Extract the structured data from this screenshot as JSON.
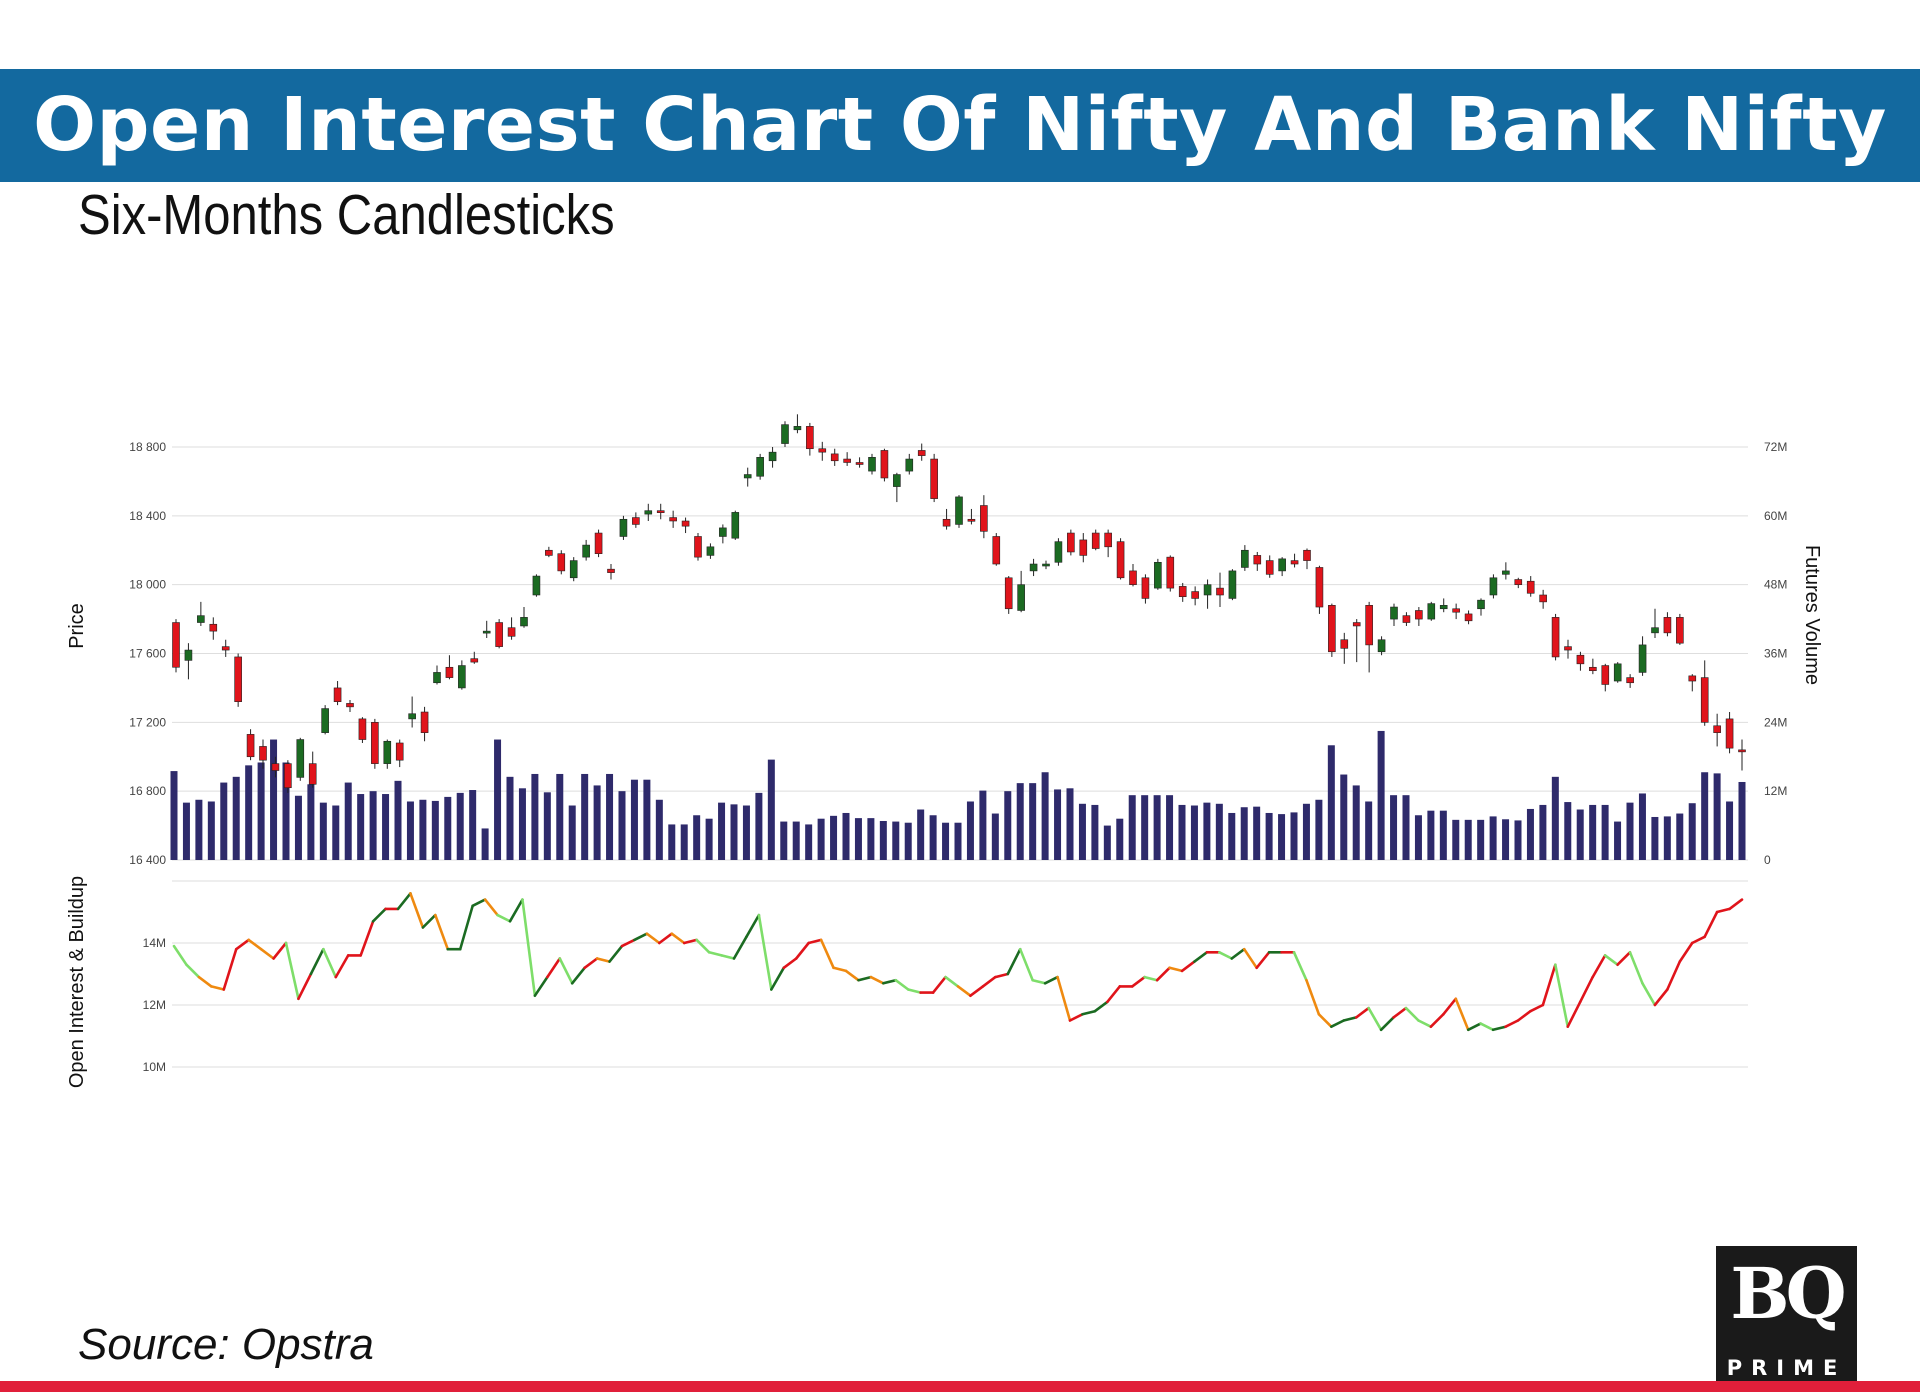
{
  "header": {
    "title": "Open Interest Chart Of Nifty And Bank Nifty",
    "subtitle": "Six-Months Candlesticks"
  },
  "footer": {
    "source": "Source: Opstra",
    "logo_main": "BQ",
    "logo_sub": "PRIME"
  },
  "colors": {
    "banner": "#13699f",
    "up": "#1b6b22",
    "down": "#e0141b",
    "volume": "#2e2a6b",
    "oi_long_buildup": "#1b6b22",
    "oi_short_covering": "#7ede6a",
    "oi_short_buildup": "#e0141b",
    "oi_long_unwinding": "#ef8a10",
    "accent_bar": "#e11f3a"
  },
  "chart_data": {
    "type": "candlestick",
    "price_axis": {
      "label": "Price",
      "ylim": [
        16400,
        18800
      ],
      "ticks": [
        16400,
        16800,
        17200,
        17600,
        18000,
        18400,
        18800
      ],
      "tick_labels": [
        "16 400",
        "16 800",
        "17 200",
        "17 600",
        "18 000",
        "18 400",
        "18 800"
      ]
    },
    "volume_axis": {
      "label": "Futures Volume",
      "ylim": [
        0,
        72
      ],
      "unit": "M",
      "ticks": [
        0,
        12,
        24,
        36,
        48,
        60,
        72
      ],
      "tick_labels": [
        "0",
        "12M",
        "24M",
        "36M",
        "48M",
        "60M",
        "72M"
      ]
    },
    "oi_axis": {
      "label": "Open Interest & Buildup",
      "ylim": [
        10,
        16
      ],
      "unit": "M",
      "ticks": [
        10,
        12,
        14
      ],
      "tick_labels": [
        "10M",
        "12M",
        "14M"
      ]
    },
    "grid": true,
    "candles": [
      [
        17780,
        17520,
        17800,
        17490
      ],
      [
        17560,
        17620,
        17660,
        17450
      ],
      [
        17780,
        17820,
        17900,
        17760
      ],
      [
        17770,
        17730,
        17810,
        17680
      ],
      [
        17640,
        17620,
        17680,
        17580
      ],
      [
        17580,
        17320,
        17600,
        17290
      ],
      [
        17130,
        17000,
        17160,
        16980
      ],
      [
        17060,
        16980,
        17100,
        16930
      ],
      [
        16960,
        16920,
        17000,
        16880
      ],
      [
        16960,
        16820,
        16980,
        16790
      ],
      [
        16880,
        17100,
        17110,
        16860
      ],
      [
        16960,
        16840,
        17030,
        16820
      ],
      [
        17140,
        17280,
        17300,
        17130
      ],
      [
        17400,
        17320,
        17440,
        17300
      ],
      [
        17310,
        17290,
        17330,
        17260
      ],
      [
        17220,
        17100,
        17230,
        17080
      ],
      [
        17200,
        16960,
        17220,
        16930
      ],
      [
        16960,
        17090,
        17100,
        16930
      ],
      [
        17080,
        16980,
        17100,
        16940
      ],
      [
        17220,
        17250,
        17350,
        17170
      ],
      [
        17260,
        17140,
        17290,
        17090
      ],
      [
        17430,
        17490,
        17530,
        17420
      ],
      [
        17520,
        17460,
        17590,
        17450
      ],
      [
        17400,
        17530,
        17560,
        17390
      ],
      [
        17570,
        17550,
        17610,
        17540
      ],
      [
        17720,
        17730,
        17790,
        17690
      ],
      [
        17780,
        17640,
        17800,
        17630
      ],
      [
        17750,
        17700,
        17810,
        17680
      ],
      [
        17760,
        17810,
        17870,
        17750
      ],
      [
        17940,
        18050,
        18060,
        17930
      ],
      [
        18200,
        18170,
        18220,
        18160
      ],
      [
        18180,
        18080,
        18200,
        18060
      ],
      [
        18040,
        18140,
        18160,
        18020
      ],
      [
        18160,
        18230,
        18260,
        18140
      ],
      [
        18300,
        18180,
        18320,
        18160
      ],
      [
        18090,
        18070,
        18120,
        18030
      ],
      [
        18280,
        18380,
        18400,
        18260
      ],
      [
        18390,
        18350,
        18420,
        18330
      ],
      [
        18410,
        18430,
        18470,
        18370
      ],
      [
        18430,
        18420,
        18470,
        18380
      ],
      [
        18390,
        18370,
        18430,
        18330
      ],
      [
        18370,
        18340,
        18390,
        18300
      ],
      [
        18280,
        18160,
        18300,
        18140
      ],
      [
        18170,
        18220,
        18240,
        18150
      ],
      [
        18280,
        18330,
        18350,
        18240
      ],
      [
        18270,
        18420,
        18430,
        18260
      ],
      [
        18620,
        18640,
        18680,
        18570
      ],
      [
        18630,
        18740,
        18760,
        18610
      ],
      [
        18720,
        18770,
        18800,
        18680
      ],
      [
        18820,
        18930,
        18950,
        18800
      ],
      [
        18900,
        18920,
        18990,
        18880
      ],
      [
        18920,
        18790,
        18940,
        18750
      ],
      [
        18790,
        18770,
        18830,
        18720
      ],
      [
        18760,
        18720,
        18790,
        18690
      ],
      [
        18730,
        18710,
        18770,
        18690
      ],
      [
        18710,
        18700,
        18740,
        18680
      ],
      [
        18660,
        18740,
        18760,
        18640
      ],
      [
        18780,
        18620,
        18790,
        18600
      ],
      [
        18570,
        18640,
        18650,
        18480
      ],
      [
        18660,
        18730,
        18760,
        18640
      ],
      [
        18780,
        18750,
        18820,
        18720
      ],
      [
        18730,
        18500,
        18760,
        18480
      ],
      [
        18380,
        18340,
        18440,
        18320
      ],
      [
        18350,
        18510,
        18520,
        18330
      ],
      [
        18380,
        18370,
        18440,
        18350
      ],
      [
        18460,
        18310,
        18520,
        18270
      ],
      [
        18280,
        18120,
        18300,
        18110
      ],
      [
        18040,
        17860,
        18050,
        17830
      ],
      [
        17850,
        18000,
        18080,
        17840
      ],
      [
        18080,
        18120,
        18150,
        18050
      ],
      [
        18120,
        18120,
        18140,
        18090
      ],
      [
        18130,
        18250,
        18270,
        18110
      ],
      [
        18300,
        18190,
        18320,
        18170
      ],
      [
        18260,
        18170,
        18300,
        18130
      ],
      [
        18300,
        18210,
        18320,
        18200
      ],
      [
        18300,
        18220,
        18320,
        18160
      ],
      [
        18250,
        18040,
        18270,
        18030
      ],
      [
        18080,
        18000,
        18120,
        17990
      ],
      [
        18040,
        17920,
        18060,
        17890
      ],
      [
        17980,
        18130,
        18150,
        17970
      ],
      [
        18160,
        17980,
        18170,
        17960
      ],
      [
        17990,
        17930,
        18010,
        17900
      ],
      [
        17960,
        17920,
        17990,
        17880
      ],
      [
        17940,
        18000,
        18030,
        17860
      ],
      [
        17980,
        17940,
        18070,
        17870
      ],
      [
        17920,
        18080,
        18090,
        17910
      ],
      [
        18100,
        18200,
        18230,
        18080
      ],
      [
        18170,
        18120,
        18190,
        18080
      ],
      [
        18140,
        18060,
        18170,
        18040
      ],
      [
        18080,
        18150,
        18160,
        18050
      ],
      [
        18140,
        18120,
        18180,
        18100
      ],
      [
        18200,
        18140,
        18210,
        18090
      ],
      [
        18100,
        17870,
        18110,
        17830
      ],
      [
        17880,
        17610,
        17890,
        17580
      ],
      [
        17680,
        17630,
        17720,
        17540
      ],
      [
        17780,
        17760,
        17800,
        17550
      ],
      [
        17880,
        17650,
        17900,
        17490
      ],
      [
        17610,
        17680,
        17700,
        17590
      ],
      [
        17800,
        17870,
        17890,
        17760
      ],
      [
        17820,
        17780,
        17840,
        17760
      ],
      [
        17850,
        17800,
        17870,
        17760
      ],
      [
        17800,
        17890,
        17900,
        17790
      ],
      [
        17860,
        17880,
        17920,
        17840
      ],
      [
        17860,
        17840,
        17890,
        17800
      ],
      [
        17830,
        17790,
        17850,
        17770
      ],
      [
        17860,
        17910,
        17920,
        17820
      ],
      [
        17940,
        18040,
        18060,
        17920
      ],
      [
        18060,
        18080,
        18130,
        18030
      ],
      [
        18030,
        18000,
        18040,
        17980
      ],
      [
        18020,
        17950,
        18050,
        17930
      ],
      [
        17940,
        17900,
        17970,
        17860
      ],
      [
        17810,
        17580,
        17830,
        17560
      ],
      [
        17640,
        17620,
        17680,
        17570
      ],
      [
        17590,
        17540,
        17610,
        17500
      ],
      [
        17520,
        17500,
        17570,
        17480
      ],
      [
        17530,
        17420,
        17540,
        17380
      ],
      [
        17440,
        17540,
        17550,
        17430
      ],
      [
        17460,
        17430,
        17480,
        17400
      ],
      [
        17490,
        17650,
        17700,
        17470
      ],
      [
        17720,
        17750,
        17860,
        17690
      ],
      [
        17810,
        17720,
        17840,
        17700
      ],
      [
        17810,
        17660,
        17830,
        17650
      ],
      [
        17470,
        17440,
        17480,
        17380
      ],
      [
        17460,
        17200,
        17560,
        17180
      ],
      [
        17180,
        17140,
        17250,
        17060
      ],
      [
        17220,
        17050,
        17260,
        17020
      ],
      [
        17040,
        17030,
        17100,
        16920
      ]
    ],
    "volume_values": [
      15.5,
      10,
      10.5,
      10.2,
      13.5,
      14.5,
      16.5,
      17,
      21,
      17,
      11.2,
      13.2,
      10,
      9.5,
      13.5,
      11.5,
      12,
      11.5,
      13.8,
      10.2,
      10.5,
      10.3,
      11,
      11.7,
      12.2,
      5.5,
      21,
      14.5,
      12.5,
      15,
      11.8,
      15,
      9.5,
      15,
      13,
      15,
      12,
      14,
      14,
      10.5,
      6.2,
      6.2,
      7.8,
      7.2,
      10,
      9.7,
      9.5,
      11.7,
      17.5,
      6.7,
      6.7,
      6.2,
      7.2,
      7.7,
      8.2,
      7.3,
      7.3,
      6.8,
      6.7,
      6.5,
      8.8,
      7.8,
      6.5,
      6.5,
      10.2,
      12.1,
      8.1,
      12,
      13.4,
      13.4,
      15.3,
      12.3,
      12.5,
      9.8,
      9.6,
      6,
      7.2,
      11.3,
      11.3,
      11.3,
      11.3,
      9.6,
      9.5,
      10,
      9.8,
      8.2,
      9.2,
      9.3,
      8.2,
      8,
      8.3,
      9.8,
      10.5,
      20,
      14.9,
      13,
      10.2,
      22.5,
      11.3,
      11.3,
      7.8,
      8.6,
      8.6,
      7,
      7,
      7,
      7.6,
      7.1,
      6.9,
      8.9,
      9.6,
      14.5,
      10.1,
      8.8,
      9.6,
      9.6,
      6.7,
      10,
      11.6,
      7.5,
      7.6,
      8.1,
      9.9,
      15.3,
      15.1,
      10.2,
      13.6
    ],
    "oi_values": [
      13.9,
      13.3,
      12.9,
      12.6,
      12.5,
      13.8,
      14.1,
      13.8,
      13.5,
      14.0,
      12.2,
      13.0,
      13.8,
      12.9,
      13.6,
      13.6,
      14.7,
      15.1,
      15.1,
      15.6,
      14.5,
      14.9,
      13.8,
      13.8,
      15.2,
      15.4,
      14.9,
      14.7,
      15.4,
      12.3,
      12.9,
      13.5,
      12.7,
      13.2,
      13.5,
      13.4,
      13.9,
      14.1,
      14.3,
      14.0,
      14.3,
      14.0,
      14.1,
      13.7,
      13.6,
      13.5,
      14.2,
      14.9,
      12.5,
      13.2,
      13.5,
      14.0,
      14.1,
      13.2,
      13.1,
      12.8,
      12.9,
      12.7,
      12.8,
      12.5,
      12.4,
      12.4,
      12.9,
      12.6,
      12.3,
      12.6,
      12.9,
      13.0,
      13.8,
      12.8,
      12.7,
      12.9,
      11.5,
      11.7,
      11.8,
      12.1,
      12.6,
      12.6,
      12.9,
      12.8,
      13.2,
      13.1,
      13.4,
      13.7,
      13.7,
      13.5,
      13.8,
      13.2,
      13.7,
      13.7,
      13.7,
      12.8,
      11.7,
      11.3,
      11.5,
      11.6,
      11.9,
      11.2,
      11.6,
      11.9,
      11.5,
      11.3,
      11.7,
      12.2,
      11.2,
      11.4,
      11.2,
      11.3,
      11.5,
      11.8,
      12.0,
      13.3,
      11.3,
      12.1,
      12.9,
      13.6,
      13.3,
      13.7,
      12.7,
      12.0,
      12.5,
      13.4,
      14.0,
      14.2,
      15.0,
      15.1,
      15.4
    ]
  }
}
